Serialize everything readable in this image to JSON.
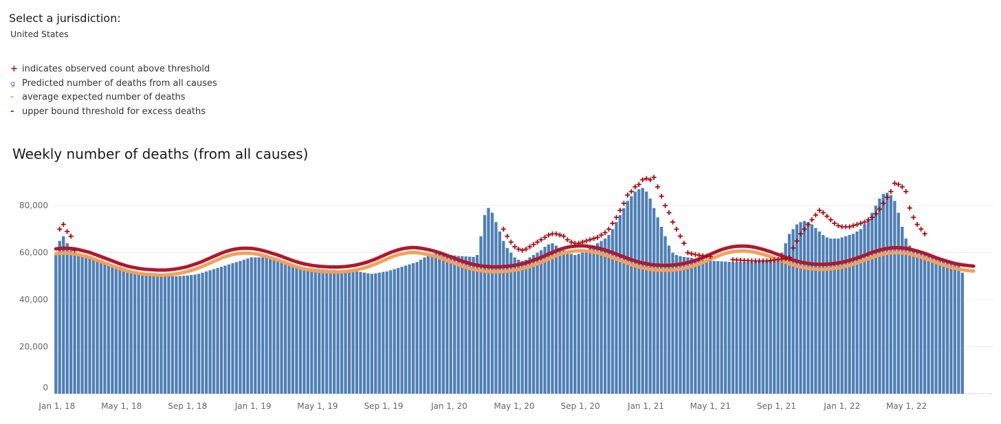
{
  "header": {
    "select_label": "Select a jurisdiction:",
    "jurisdiction": "United States"
  },
  "legend": {
    "items": [
      {
        "symbol": "+",
        "label": "indicates observed count above threshold",
        "color": "#a50f15"
      },
      {
        "symbol": "g",
        "label": "Predicted number of deaths from all causes",
        "color": "#4a7fb3"
      },
      {
        "symbol": "-",
        "label": "average expected number of deaths",
        "color": "#f5a05a"
      },
      {
        "symbol": "-",
        "label": "upper bound threshold for excess deaths",
        "color": "#b3172d"
      }
    ]
  },
  "colors": {
    "bar": "#4f7fb5",
    "expected": "#f5a05a",
    "threshold": "#b3172d",
    "plus": "#a50f15",
    "grid": "#ececec"
  },
  "chart_data": {
    "type": "bar",
    "title": "Weekly number of deaths (from all causes)",
    "xlabel": "",
    "ylabel": "",
    "ylim": [
      0,
      90000
    ],
    "yticks": [
      0,
      20000,
      40000,
      60000,
      80000
    ],
    "ytick_labels": [
      "0",
      "20,000",
      "40,000",
      "60,000",
      "80,000"
    ],
    "xticks": [
      {
        "date": "2018-01-01",
        "label": "Jan 1, 18"
      },
      {
        "date": "2018-05-01",
        "label": "May 1, 18"
      },
      {
        "date": "2018-09-01",
        "label": "Sep 1, 18"
      },
      {
        "date": "2019-01-01",
        "label": "Jan 1, 19"
      },
      {
        "date": "2019-05-01",
        "label": "May 1, 19"
      },
      {
        "date": "2019-09-01",
        "label": "Sep 1, 19"
      },
      {
        "date": "2020-01-01",
        "label": "Jan 1, 20"
      },
      {
        "date": "2020-05-01",
        "label": "May 1, 20"
      },
      {
        "date": "2020-09-01",
        "label": "Sep 1, 20"
      },
      {
        "date": "2021-01-01",
        "label": "Jan 1, 21"
      },
      {
        "date": "2021-05-01",
        "label": "May 1, 21"
      },
      {
        "date": "2021-09-01",
        "label": "Sep 1, 21"
      },
      {
        "date": "2022-01-01",
        "label": "Jan 1, 22"
      },
      {
        "date": "2022-05-01",
        "label": "May 1, 22"
      }
    ],
    "x_start": "2017-12-30",
    "week_interval_days": 7,
    "series": [
      {
        "name": "Predicted number of deaths from all causes",
        "type": "bar",
        "values": [
          59000,
          65000,
          67000,
          64000,
          61000,
          60000,
          59500,
          59000,
          58500,
          58000,
          57500,
          57000,
          56500,
          56000,
          55500,
          55000,
          54500,
          54000,
          53500,
          53000,
          52500,
          52000,
          51500,
          51000,
          50800,
          50600,
          50400,
          50300,
          50200,
          50100,
          50000,
          50000,
          50000,
          50100,
          50200,
          50300,
          50500,
          50700,
          51000,
          51500,
          52000,
          52500,
          53000,
          53500,
          54000,
          54500,
          55000,
          55500,
          56000,
          56500,
          57000,
          57500,
          58000,
          58000,
          58000,
          58000,
          58000,
          58000,
          57500,
          57000,
          56500,
          56000,
          55500,
          55000,
          54500,
          54000,
          53800,
          53600,
          53400,
          53200,
          53000,
          52900,
          52800,
          52700,
          52600,
          52500,
          52400,
          52300,
          52200,
          52100,
          52000,
          51800,
          51500,
          51200,
          51000,
          51200,
          51500,
          51800,
          52000,
          52500,
          53000,
          53500,
          54000,
          54500,
          55000,
          55500,
          56000,
          57000,
          58000,
          59000,
          59500,
          59800,
          59600,
          59400,
          59200,
          59000,
          58800,
          58600,
          58500,
          58400,
          58300,
          58200,
          59000,
          67000,
          76000,
          79000,
          77000,
          73000,
          69000,
          65000,
          62000,
          60000,
          58000,
          57000,
          56500,
          57000,
          58000,
          59000,
          60000,
          61000,
          62500,
          63500,
          64000,
          63000,
          62000,
          61000,
          60000,
          59500,
          59000,
          59500,
          60000,
          61000,
          62000,
          63000,
          64000,
          65000,
          66000,
          67500,
          70000,
          73000,
          76000,
          79000,
          82000,
          84000,
          86000,
          87000,
          87500,
          86000,
          83000,
          79000,
          75000,
          71000,
          67000,
          63000,
          60000,
          59000,
          58500,
          58200,
          58000,
          57800,
          57500,
          57200,
          57000,
          56800,
          56600,
          56500,
          56400,
          56300,
          56200,
          56100,
          56000,
          56000,
          56000,
          56000,
          56000,
          56000,
          56200,
          56400,
          56600,
          56800,
          57000,
          57500,
          58000,
          60000,
          64000,
          68000,
          70000,
          72000,
          73000,
          73500,
          73000,
          72000,
          70500,
          69000,
          67500,
          66500,
          66000,
          66000,
          66000,
          66500,
          67000,
          67500,
          68000,
          69000,
          70000,
          72000,
          74000,
          77000,
          80000,
          83000,
          85000,
          85500,
          84500,
          82000,
          77000,
          71000,
          66000,
          63000,
          61000,
          60000,
          59500,
          59000,
          58500,
          58000,
          57500,
          57000,
          56500,
          56000,
          55500,
          55000,
          54500,
          51500
        ]
      },
      {
        "name": "average expected number of deaths",
        "type": "line",
        "values": [
          59500,
          59700,
          59800,
          59800,
          59700,
          59500,
          59200,
          58800,
          58400,
          58000,
          57400,
          56800,
          56200,
          55600,
          55000,
          54400,
          53800,
          53200,
          52700,
          52200,
          51800,
          51500,
          51200,
          51000,
          50800,
          50700,
          50600,
          50500,
          50500,
          50500,
          50600,
          50800,
          51000,
          51300,
          51600,
          52000,
          52500,
          53000,
          53600,
          54200,
          54900,
          55600,
          56300,
          57000,
          57700,
          58300,
          58800,
          59200,
          59500,
          59700,
          59800,
          59800,
          59700,
          59500,
          59200,
          58800,
          58400,
          57900,
          57400,
          56900,
          56300,
          55700,
          55100,
          54500,
          54000,
          53500,
          53100,
          52800,
          52500,
          52300,
          52100,
          52000,
          51900,
          51800,
          51800,
          51800,
          51900,
          52000,
          52200,
          52400,
          52700,
          53100,
          53500,
          54000,
          54600,
          55200,
          55900,
          56600,
          57300,
          58000,
          58600,
          59100,
          59500,
          59800,
          60000,
          60100,
          60000,
          59800,
          59500,
          59200,
          58800,
          58400,
          57900,
          57300,
          56700,
          56100,
          55500,
          54900,
          54300,
          53800,
          53300,
          52900,
          52600,
          52300,
          52100,
          52000,
          51900,
          51900,
          51900,
          52000,
          52100,
          52300,
          52500,
          52800,
          53200,
          53600,
          54100,
          54700,
          55300,
          55900,
          56600,
          57300,
          58000,
          58700,
          59300,
          59800,
          60200,
          60500,
          60700,
          60800,
          60800,
          60700,
          60500,
          60200,
          59900,
          59500,
          59000,
          58500,
          57900,
          57300,
          56700,
          56100,
          55500,
          54900,
          54400,
          53900,
          53500,
          53200,
          52900,
          52700,
          52600,
          52500,
          52500,
          52500,
          52600,
          52800,
          53000,
          53300,
          53700,
          54100,
          54600,
          55200,
          55800,
          56500,
          57200,
          57900,
          58600,
          59200,
          59700,
          60100,
          60400,
          60600,
          60700,
          60700,
          60600,
          60400,
          60100,
          59700,
          59300,
          58800,
          58300,
          57700,
          57100,
          56500,
          55900,
          55300,
          54800,
          54300,
          53900,
          53600,
          53300,
          53100,
          53000,
          52900,
          52900,
          53000,
          53100,
          53300,
          53500,
          53800,
          54200,
          54600,
          55100,
          55600,
          56200,
          56800,
          57400,
          58000,
          58500,
          59000,
          59400,
          59700,
          59900,
          60000,
          60000,
          59900,
          59700,
          59400,
          59000,
          58600,
          58100,
          57600,
          57000,
          56400,
          55800,
          55200,
          54700,
          54200,
          53700,
          53300,
          53000,
          52700,
          52500,
          52300,
          52200
        ]
      },
      {
        "name": "upper bound threshold for excess deaths",
        "type": "line",
        "values": [
          61600,
          61800,
          61900,
          61900,
          61800,
          61600,
          61300,
          60900,
          60500,
          60100,
          59500,
          58900,
          58300,
          57700,
          57100,
          56500,
          55900,
          55300,
          54800,
          54300,
          53900,
          53600,
          53300,
          53100,
          52900,
          52800,
          52700,
          52600,
          52600,
          52600,
          52700,
          52900,
          53100,
          53400,
          53700,
          54100,
          54600,
          55100,
          55700,
          56300,
          57000,
          57700,
          58400,
          59100,
          59800,
          60400,
          60900,
          61300,
          61600,
          61800,
          61900,
          61900,
          61800,
          61600,
          61300,
          60900,
          60500,
          60000,
          59500,
          59000,
          58400,
          57800,
          57200,
          56600,
          56100,
          55600,
          55200,
          54900,
          54600,
          54400,
          54200,
          54100,
          54000,
          53900,
          53900,
          53900,
          54000,
          54100,
          54300,
          54500,
          54800,
          55200,
          55600,
          56100,
          56700,
          57300,
          58000,
          58700,
          59400,
          60100,
          60700,
          61200,
          61600,
          61900,
          62100,
          62200,
          62100,
          61900,
          61600,
          61300,
          60900,
          60500,
          60000,
          59400,
          58800,
          58200,
          57600,
          57000,
          56400,
          55900,
          55400,
          55000,
          54700,
          54400,
          54200,
          54100,
          54000,
          54000,
          54000,
          54100,
          54200,
          54400,
          54600,
          54900,
          55300,
          55700,
          56200,
          56800,
          57400,
          58000,
          58700,
          59400,
          60100,
          60800,
          61400,
          61900,
          62300,
          62600,
          62800,
          62900,
          62900,
          62800,
          62600,
          62300,
          62000,
          61600,
          61100,
          60600,
          60000,
          59400,
          58800,
          58200,
          57600,
          57000,
          56500,
          56000,
          55600,
          55300,
          55000,
          54800,
          54700,
          54600,
          54600,
          54600,
          54700,
          54900,
          55100,
          55400,
          55800,
          56200,
          56700,
          57300,
          57900,
          58600,
          59300,
          60000,
          60700,
          61300,
          61800,
          62200,
          62500,
          62700,
          62800,
          62800,
          62700,
          62500,
          62200,
          61800,
          61400,
          60900,
          60400,
          59800,
          59200,
          58600,
          58000,
          57400,
          56900,
          56400,
          56000,
          55700,
          55400,
          55200,
          55100,
          55000,
          55000,
          55100,
          55200,
          55400,
          55600,
          55900,
          56300,
          56700,
          57200,
          57700,
          58300,
          58900,
          59500,
          60100,
          60600,
          61100,
          61500,
          61800,
          62000,
          62100,
          62100,
          62000,
          61800,
          61500,
          61100,
          60700,
          60200,
          59700,
          59100,
          58500,
          57900,
          57300,
          56800,
          56300,
          55800,
          55400,
          55100,
          54800,
          54600,
          54400,
          54300
        ]
      }
    ],
    "above_threshold_weeks": [
      1,
      2,
      3,
      4,
      5,
      119,
      120,
      121,
      122,
      123,
      124,
      125,
      126,
      127,
      128,
      129,
      130,
      131,
      132,
      133,
      134,
      135,
      136,
      137,
      138,
      139,
      140,
      141,
      142,
      143,
      144,
      145,
      146,
      147,
      148,
      149,
      150,
      151,
      152,
      153,
      154,
      155,
      156,
      157,
      158,
      159,
      160,
      161,
      162,
      163,
      164,
      165,
      166,
      167,
      168,
      169,
      170,
      171,
      172,
      173,
      174,
      180,
      181,
      182,
      183,
      184,
      185,
      186,
      187,
      188,
      189,
      190,
      191,
      192,
      193,
      194,
      195,
      196,
      197,
      198,
      199,
      200,
      201,
      202,
      203,
      204,
      205,
      206,
      207,
      208,
      209,
      210,
      211,
      212,
      213,
      214,
      215,
      216,
      217,
      218,
      219,
      220,
      221,
      222,
      223,
      224,
      225,
      226,
      227,
      228,
      229,
      230,
      231
    ],
    "observed_counts": [
      66000,
      70000,
      72000,
      69000,
      67000,
      61000,
      60000,
      59500,
      59000,
      58500,
      58000,
      57500,
      57000,
      56500,
      56000,
      55500,
      55000,
      54500,
      54000,
      53500,
      53000,
      52500,
      52000,
      51500,
      51300,
      51100,
      50900,
      50800,
      50700,
      50600,
      50500,
      50500,
      50500,
      50600,
      50700,
      50800,
      51000,
      51200,
      51500,
      52000,
      52500,
      53000,
      53500,
      54000,
      54500,
      55000,
      55500,
      56000,
      56500,
      57000,
      57500,
      58000,
      58500,
      58500,
      58500,
      58500,
      58500,
      58500,
      58000,
      57500,
      57000,
      56500,
      56000,
      55500,
      55000,
      54500,
      54300,
      54100,
      53900,
      53700,
      53500,
      53400,
      53300,
      53200,
      53100,
      53000,
      52900,
      52800,
      52700,
      52600,
      52500,
      52300,
      52000,
      51700,
      51500,
      51700,
      52000,
      52300,
      52500,
      53000,
      53500,
      54000,
      54500,
      55000,
      55500,
      56000,
      56500,
      57500,
      58500,
      59500,
      60000,
      60300,
      60100,
      59900,
      59700,
      59500,
      59300,
      59100,
      59000,
      58900,
      58800,
      58700,
      59500,
      67500,
      76500,
      83500,
      82000,
      78000,
      74000,
      70000,
      67000,
      64500,
      62500,
      61500,
      61000,
      61500,
      62500,
      63500,
      64500,
      65500,
      66500,
      67500,
      68000,
      68000,
      67500,
      67000,
      65500,
      64500,
      64000,
      64000,
      64500,
      65000,
      65500,
      66000,
      66500,
      67500,
      68500,
      70000,
      72500,
      75000,
      78000,
      81000,
      84500,
      86000,
      88000,
      89000,
      91000,
      91500,
      91000,
      92000,
      88000,
      84000,
      80000,
      77000,
      73000,
      70000,
      67000,
      64000,
      60000,
      59500,
      59200,
      58900,
      58700,
      58500,
      58300,
      58000,
      57800,
      57600,
      57400,
      57200,
      57000,
      56900,
      56800,
      56700,
      56600,
      56500,
      56500,
      56500,
      56500,
      56500,
      56700,
      56900,
      57100,
      57300,
      57500,
      58000,
      62000,
      65000,
      68000,
      70000,
      72000,
      74000,
      76000,
      78000,
      77000,
      75500,
      74000,
      72500,
      71500,
      71000,
      71000,
      71000,
      71500,
      72000,
      72500,
      73000,
      74000,
      75000,
      76500,
      78500,
      81000,
      83500,
      86000,
      89500,
      89000,
      88000,
      86000,
      79000,
      75000,
      72000,
      70000,
      68000,
      66000,
      62000,
      60000,
      59500,
      59000,
      58500,
      58000,
      57500,
      57000,
      52000
    ]
  }
}
